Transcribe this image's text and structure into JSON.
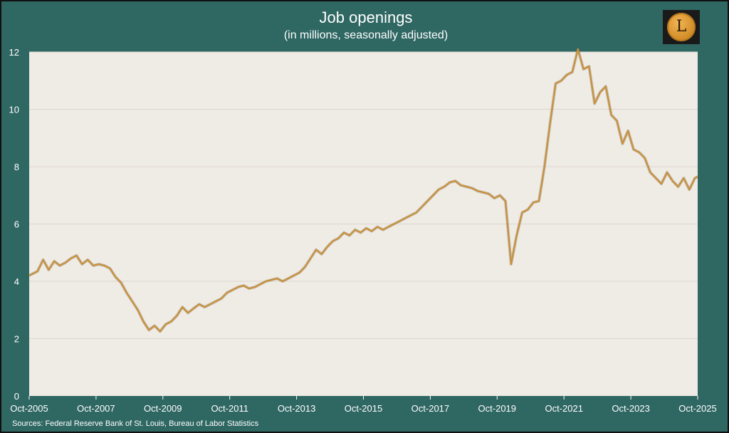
{
  "title": "Job openings",
  "subtitle": "(in millions, seasonally adjusted)",
  "logo_letter": "L",
  "source": "Sources: Federal Reserve Bank of St. Louis, Bureau of Labor Statistics",
  "colors": {
    "background": "#2f6763",
    "plot_bg": "#efebe5",
    "line": "#c8913a",
    "line_shadow": "#7a6a55",
    "text": "#ffffff"
  },
  "chart_data": {
    "type": "line",
    "title": "Job openings",
    "subtitle": "(in millions, seasonally adjusted)",
    "ylim": [
      0,
      12
    ],
    "yticks": [
      0,
      2,
      4,
      6,
      8,
      10,
      12
    ],
    "xlim": [
      "2005-10",
      "2025-10"
    ],
    "xticks": [
      "Oct-2005",
      "Oct-2007",
      "Oct-2009",
      "Oct-2011",
      "Oct-2013",
      "Oct-2015",
      "Oct-2017",
      "Oct-2019",
      "Oct-2021",
      "Oct-2023",
      "Oct-2025"
    ],
    "grid": "horizontal",
    "legend": "none",
    "series": [
      {
        "points": [
          [
            "2005-10",
            4.2
          ],
          [
            "2006-01",
            4.35
          ],
          [
            "2006-03",
            4.75
          ],
          [
            "2006-05",
            4.4
          ],
          [
            "2006-07",
            4.7
          ],
          [
            "2006-09",
            4.55
          ],
          [
            "2006-11",
            4.65
          ],
          [
            "2007-01",
            4.8
          ],
          [
            "2007-03",
            4.9
          ],
          [
            "2007-05",
            4.6
          ],
          [
            "2007-07",
            4.75
          ],
          [
            "2007-09",
            4.55
          ],
          [
            "2007-11",
            4.6
          ],
          [
            "2008-01",
            4.55
          ],
          [
            "2008-03",
            4.45
          ],
          [
            "2008-05",
            4.15
          ],
          [
            "2008-07",
            3.95
          ],
          [
            "2008-09",
            3.6
          ],
          [
            "2008-11",
            3.3
          ],
          [
            "2009-01",
            3.0
          ],
          [
            "2009-03",
            2.6
          ],
          [
            "2009-05",
            2.3
          ],
          [
            "2009-07",
            2.45
          ],
          [
            "2009-09",
            2.25
          ],
          [
            "2009-11",
            2.5
          ],
          [
            "2010-01",
            2.6
          ],
          [
            "2010-03",
            2.8
          ],
          [
            "2010-05",
            3.1
          ],
          [
            "2010-07",
            2.9
          ],
          [
            "2010-09",
            3.05
          ],
          [
            "2010-11",
            3.2
          ],
          [
            "2011-01",
            3.1
          ],
          [
            "2011-03",
            3.2
          ],
          [
            "2011-05",
            3.3
          ],
          [
            "2011-07",
            3.4
          ],
          [
            "2011-09",
            3.6
          ],
          [
            "2011-11",
            3.7
          ],
          [
            "2012-01",
            3.8
          ],
          [
            "2012-03",
            3.85
          ],
          [
            "2012-05",
            3.75
          ],
          [
            "2012-07",
            3.8
          ],
          [
            "2012-09",
            3.9
          ],
          [
            "2012-11",
            4.0
          ],
          [
            "2013-01",
            4.05
          ],
          [
            "2013-03",
            4.1
          ],
          [
            "2013-05",
            4.0
          ],
          [
            "2013-07",
            4.1
          ],
          [
            "2013-09",
            4.2
          ],
          [
            "2013-11",
            4.3
          ],
          [
            "2014-01",
            4.5
          ],
          [
            "2014-03",
            4.8
          ],
          [
            "2014-05",
            5.1
          ],
          [
            "2014-07",
            4.95
          ],
          [
            "2014-09",
            5.2
          ],
          [
            "2014-11",
            5.4
          ],
          [
            "2015-01",
            5.5
          ],
          [
            "2015-03",
            5.7
          ],
          [
            "2015-05",
            5.6
          ],
          [
            "2015-07",
            5.8
          ],
          [
            "2015-09",
            5.7
          ],
          [
            "2015-11",
            5.85
          ],
          [
            "2016-01",
            5.75
          ],
          [
            "2016-03",
            5.9
          ],
          [
            "2016-05",
            5.8
          ],
          [
            "2016-07",
            5.9
          ],
          [
            "2016-09",
            6.0
          ],
          [
            "2016-11",
            6.1
          ],
          [
            "2017-01",
            6.2
          ],
          [
            "2017-03",
            6.3
          ],
          [
            "2017-05",
            6.4
          ],
          [
            "2017-07",
            6.6
          ],
          [
            "2017-09",
            6.8
          ],
          [
            "2017-11",
            7.0
          ],
          [
            "2018-01",
            7.2
          ],
          [
            "2018-03",
            7.3
          ],
          [
            "2018-05",
            7.45
          ],
          [
            "2018-07",
            7.5
          ],
          [
            "2018-09",
            7.35
          ],
          [
            "2018-11",
            7.3
          ],
          [
            "2019-01",
            7.25
          ],
          [
            "2019-03",
            7.15
          ],
          [
            "2019-05",
            7.1
          ],
          [
            "2019-07",
            7.05
          ],
          [
            "2019-09",
            6.9
          ],
          [
            "2019-11",
            7.0
          ],
          [
            "2020-01",
            6.8
          ],
          [
            "2020-03",
            4.6
          ],
          [
            "2020-05",
            5.6
          ],
          [
            "2020-07",
            6.4
          ],
          [
            "2020-09",
            6.5
          ],
          [
            "2020-11",
            6.75
          ],
          [
            "2021-01",
            6.8
          ],
          [
            "2021-03",
            8.0
          ],
          [
            "2021-05",
            9.5
          ],
          [
            "2021-07",
            10.9
          ],
          [
            "2021-09",
            11.0
          ],
          [
            "2021-11",
            11.2
          ],
          [
            "2022-01",
            11.3
          ],
          [
            "2022-03",
            12.1
          ],
          [
            "2022-05",
            11.4
          ],
          [
            "2022-07",
            11.5
          ],
          [
            "2022-09",
            10.2
          ],
          [
            "2022-11",
            10.6
          ],
          [
            "2023-01",
            10.8
          ],
          [
            "2023-03",
            9.8
          ],
          [
            "2023-05",
            9.6
          ],
          [
            "2023-07",
            8.8
          ],
          [
            "2023-09",
            9.25
          ],
          [
            "2023-11",
            8.6
          ],
          [
            "2024-01",
            8.5
          ],
          [
            "2024-03",
            8.3
          ],
          [
            "2024-05",
            7.8
          ],
          [
            "2024-07",
            7.6
          ],
          [
            "2024-09",
            7.4
          ],
          [
            "2024-11",
            7.8
          ],
          [
            "2025-01",
            7.5
          ],
          [
            "2025-03",
            7.3
          ],
          [
            "2025-05",
            7.6
          ],
          [
            "2025-07",
            7.2
          ],
          [
            "2025-09",
            7.6
          ],
          [
            "2025-10",
            7.65
          ]
        ]
      }
    ]
  }
}
